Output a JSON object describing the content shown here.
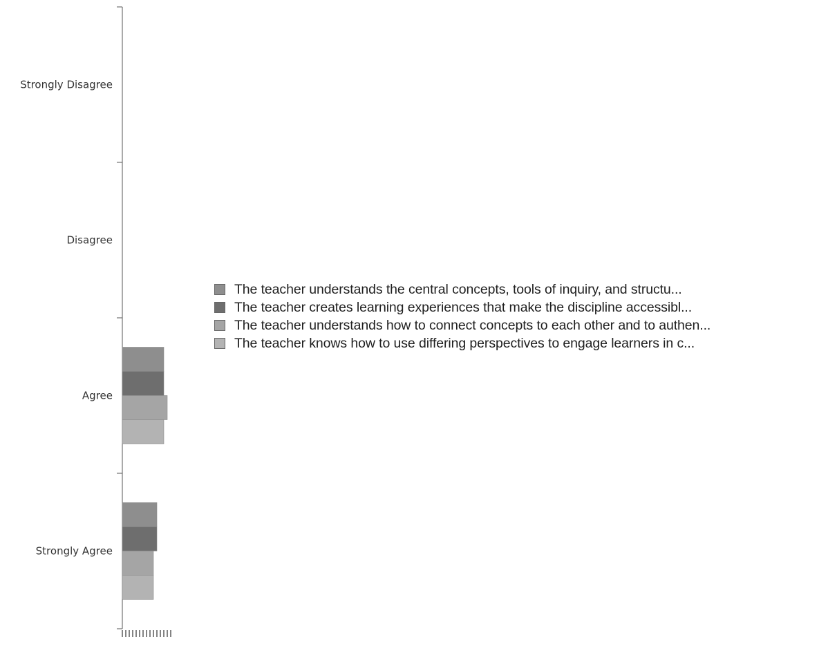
{
  "chart_data": {
    "type": "bar",
    "orientation": "horizontal",
    "categories": [
      "Strongly Disagree",
      "Disagree",
      "Agree",
      "Strongly Agree"
    ],
    "series": [
      {
        "name": "The teacher understands the central concepts, tools of inquiry, and structu...",
        "color": "#8e8e8e",
        "values": [
          0,
          0,
          12,
          10
        ]
      },
      {
        "name": "The teacher creates learning experiences that make the discipline accessibl...",
        "color": "#6e6e6e",
        "values": [
          0,
          0,
          12,
          10
        ]
      },
      {
        "name": "The teacher understands how to connect concepts to each other and to authen...",
        "color": "#a5a5a5",
        "values": [
          0,
          0,
          13,
          9
        ]
      },
      {
        "name": "The teacher knows how to use differing perspectives to engage learners in c...",
        "color": "#b3b3b3",
        "values": [
          0,
          0,
          12,
          9
        ]
      }
    ],
    "xlim": [
      0,
      14
    ],
    "grid": false,
    "legend_position": "right"
  }
}
